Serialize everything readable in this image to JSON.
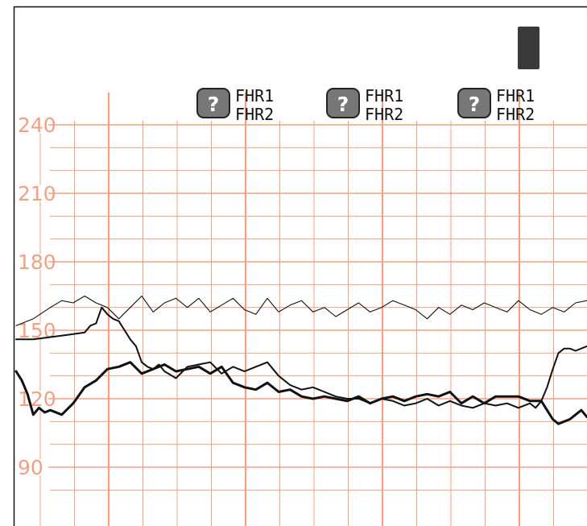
{
  "colors": {
    "grid": "#f2a083",
    "trace": "#111111",
    "paper": "#ffffff",
    "marker_box": "#777777",
    "event_block": "#3a3a3a"
  },
  "markers": [
    {
      "icon": "question-mark-icon",
      "line1": "FHR1",
      "line2": "FHR2"
    },
    {
      "icon": "question-mark-icon",
      "line1": "FHR1",
      "line2": "FHR2"
    },
    {
      "icon": "question-mark-icon",
      "line1": "FHR1",
      "line2": "FHR2"
    }
  ],
  "chart_data": {
    "type": "line",
    "y_tick_labels": [
      "240",
      "210",
      "180",
      "150",
      "120",
      "90"
    ],
    "ylim": [
      75,
      270
    ],
    "grid": true,
    "series": [
      {
        "style": "thin",
        "x": [
          0,
          3,
          6,
          8,
          10,
          12,
          14,
          16,
          18,
          20,
          22,
          24,
          26,
          28,
          30,
          32,
          34,
          36,
          38,
          40,
          42,
          44,
          46,
          48,
          50,
          52,
          54,
          56,
          58,
          60,
          62,
          64,
          66,
          68,
          70,
          72,
          74,
          76,
          78,
          80,
          82,
          84,
          86,
          88,
          90,
          92,
          94,
          96,
          98,
          100
        ],
        "y": [
          152,
          155,
          160,
          163,
          162,
          165,
          162,
          160,
          155,
          160,
          165,
          158,
          162,
          164,
          160,
          164,
          158,
          161,
          164,
          159,
          157,
          164,
          158,
          161,
          163,
          158,
          160,
          156,
          159,
          162,
          158,
          160,
          163,
          161,
          159,
          155,
          160,
          157,
          161,
          159,
          162,
          160,
          158,
          163,
          159,
          157,
          160,
          158,
          162,
          163
        ]
      },
      {
        "style": "medium",
        "x": [
          0,
          3,
          6,
          9,
          12,
          13,
          14,
          15,
          16,
          17,
          18,
          19,
          20,
          21,
          22,
          23,
          24,
          25,
          26,
          28,
          30,
          32,
          34,
          36,
          38,
          40,
          42,
          44,
          46,
          48,
          50,
          52,
          54,
          56,
          58,
          60,
          62,
          64,
          66,
          68,
          70,
          72,
          74,
          76,
          78,
          80,
          82,
          84,
          86,
          88,
          90,
          91,
          92,
          93,
          94,
          95,
          96,
          97,
          98,
          100
        ],
        "y": [
          146,
          146,
          147,
          148,
          149,
          152,
          153,
          160,
          157,
          155,
          154,
          150,
          146,
          143,
          136,
          134,
          133,
          135,
          132,
          129,
          134,
          135,
          136,
          131,
          134,
          132,
          134,
          136,
          130,
          126,
          124,
          125,
          123,
          121,
          120,
          120,
          118,
          120,
          119,
          117,
          118,
          120,
          117,
          119,
          117,
          116,
          118,
          117,
          118,
          116,
          118,
          116,
          119,
          125,
          133,
          140,
          142,
          142,
          141,
          143
        ]
      },
      {
        "style": "thick",
        "x": [
          0,
          1,
          2,
          3,
          4,
          5,
          6,
          8,
          10,
          12,
          14,
          16,
          18,
          20,
          22,
          24,
          26,
          28,
          30,
          32,
          34,
          36,
          38,
          40,
          42,
          44,
          46,
          48,
          50,
          52,
          54,
          56,
          58,
          60,
          62,
          64,
          66,
          68,
          70,
          72,
          74,
          76,
          78,
          80,
          82,
          84,
          86,
          88,
          90,
          92,
          93,
          94,
          95,
          96,
          97,
          98,
          99,
          100
        ],
        "y": [
          132,
          128,
          122,
          113,
          116,
          114,
          115,
          113,
          118,
          125,
          128,
          133,
          134,
          136,
          131,
          133,
          135,
          132,
          133,
          134,
          131,
          134,
          127,
          125,
          124,
          127,
          123,
          124,
          121,
          120,
          121,
          120,
          119,
          121,
          118,
          120,
          121,
          119,
          121,
          122,
          121,
          123,
          118,
          121,
          118,
          121,
          121,
          121,
          119,
          119,
          115,
          111,
          109,
          110,
          111,
          113,
          115,
          112
        ]
      }
    ]
  }
}
